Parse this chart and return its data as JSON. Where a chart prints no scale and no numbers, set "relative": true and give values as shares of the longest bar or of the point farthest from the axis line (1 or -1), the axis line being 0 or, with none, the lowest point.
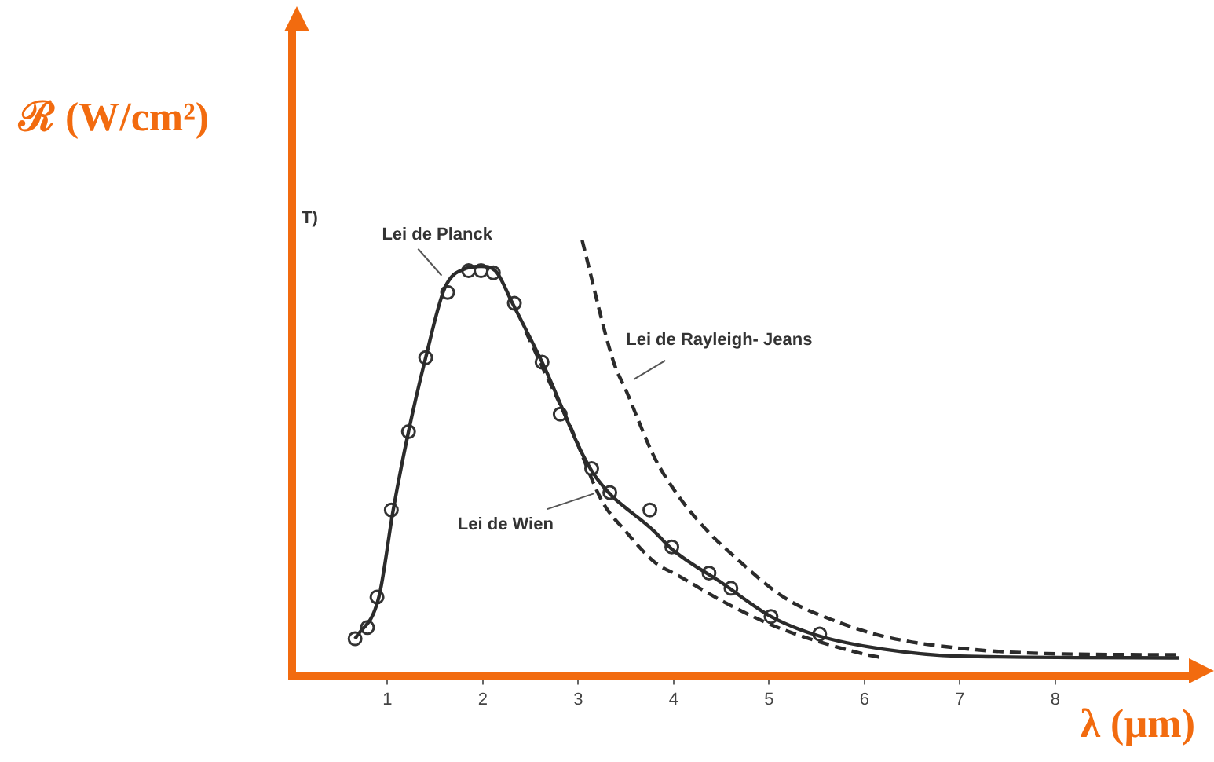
{
  "chart_data": {
    "type": "line",
    "xlabel": "λ (µm)",
    "ylabel": "ℛ (W/cm²)",
    "relative": true,
    "xlim": [
      0,
      9.4
    ],
    "xticks": [
      1,
      2,
      3,
      4,
      5,
      6,
      7,
      8
    ],
    "annotations": [
      "T)"
    ],
    "legend": false,
    "grid": false,
    "series": [
      {
        "name": "Lei de Planck",
        "color": "#2b2b2b",
        "line_style": "solid",
        "marker": "none",
        "x": [
          0.66,
          0.91,
          1.06,
          1.22,
          1.4,
          1.6,
          1.82,
          1.98,
          2.13,
          2.31,
          2.62,
          3.14,
          3.8,
          3.98,
          4.52,
          5.02,
          5.53,
          6.2,
          7.0,
          9.3
        ],
        "values": [
          0.084,
          0.18,
          0.38,
          0.56,
          0.73,
          0.89,
          0.935,
          0.94,
          0.93,
          0.855,
          0.72,
          0.47,
          0.33,
          0.29,
          0.21,
          0.135,
          0.09,
          0.06,
          0.044,
          0.04
        ]
      },
      {
        "name": "Lei de Wien",
        "color": "#2b2b2b",
        "line_style": "dashed",
        "marker": "none",
        "x": [
          2.45,
          2.62,
          2.92,
          3.25,
          3.5,
          3.8,
          4.04,
          4.6,
          5.15,
          5.97,
          6.19
        ],
        "values": [
          0.79,
          0.71,
          0.57,
          0.4,
          0.33,
          0.26,
          0.23,
          0.16,
          0.105,
          0.05,
          0.04
        ]
      },
      {
        "name": "Lei de Rayleigh- Jeans",
        "color": "#2b2b2b",
        "line_style": "dashed",
        "marker": "none",
        "x": [
          3.04,
          3.37,
          3.5,
          3.8,
          4.04,
          4.36,
          4.6,
          5.15,
          5.69,
          6.25,
          7.01,
          7.9,
          9.32
        ],
        "values": [
          1.0,
          0.72,
          0.655,
          0.5,
          0.415,
          0.33,
          0.28,
          0.18,
          0.125,
          0.087,
          0.062,
          0.05,
          0.047
        ]
      },
      {
        "type": "scatter",
        "color": "#333333",
        "marker": "circle",
        "x": [
          0.66,
          0.79,
          0.89,
          1.04,
          1.22,
          1.4,
          1.63,
          1.85,
          1.98,
          2.11,
          2.33,
          2.62,
          2.81,
          3.14,
          3.33,
          3.75,
          3.98,
          4.37,
          4.6,
          5.02,
          5.53
        ],
        "values": [
          0.084,
          0.11,
          0.18,
          0.38,
          0.56,
          0.73,
          0.88,
          0.93,
          0.93,
          0.925,
          0.855,
          0.72,
          0.6,
          0.475,
          0.42,
          0.38,
          0.295,
          0.235,
          0.2,
          0.135,
          0.095
        ]
      }
    ]
  }
}
